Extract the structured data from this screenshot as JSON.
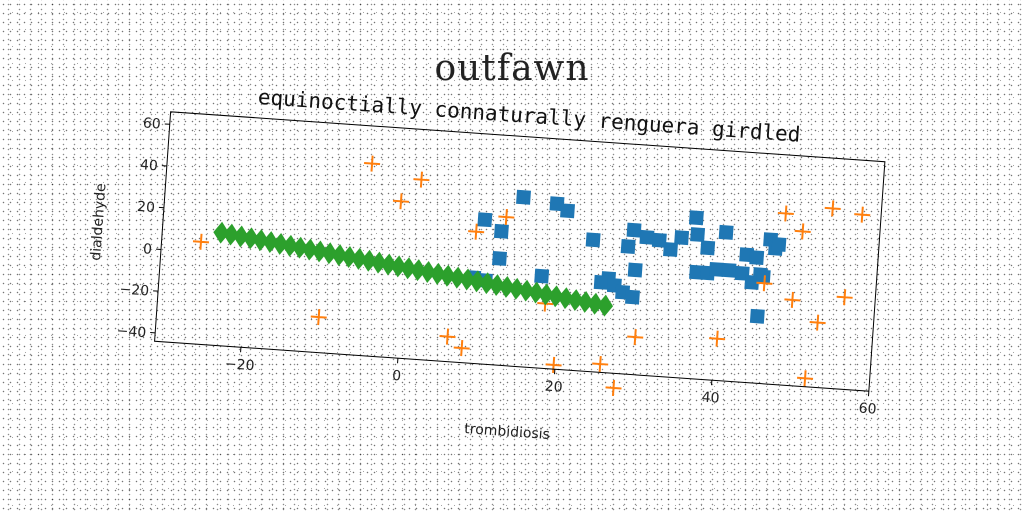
{
  "figure_title": "outfawn",
  "chart_data": {
    "type": "scatter",
    "title": "equinoctially connaturally renguera girdled",
    "xlabel": "trombidiosis",
    "ylabel": "dialdehyde",
    "xlim": [
      -31,
      60
    ],
    "ylim": [
      -44,
      66
    ],
    "xticks": [
      -20,
      0,
      20,
      40,
      60
    ],
    "yticks": [
      -40,
      -20,
      0,
      20,
      40,
      60
    ],
    "grid": false,
    "series": [
      {
        "marker": "square",
        "color": "#1f77b4",
        "points": [
          [
            8.9,
            -3
          ],
          [
            10.4,
            -4
          ],
          [
            12,
            7
          ],
          [
            9.8,
            25
          ],
          [
            12,
            20
          ],
          [
            14.5,
            37
          ],
          [
            18.8,
            35
          ],
          [
            20.2,
            32
          ],
          [
            17.5,
            0
          ],
          [
            23.7,
            19
          ],
          [
            26,
            1
          ],
          [
            25.1,
            -1
          ],
          [
            26.8,
            -2
          ],
          [
            27.9,
            -5
          ],
          [
            29.2,
            -7
          ],
          [
            28.8,
            25
          ],
          [
            28.2,
            17
          ],
          [
            30.5,
            22
          ],
          [
            29.3,
            6
          ],
          [
            32.1,
            21
          ],
          [
            33.6,
            17
          ],
          [
            34.9,
            23
          ],
          [
            36.6,
            33
          ],
          [
            36.9,
            25
          ],
          [
            37.1,
            7
          ],
          [
            38.3,
            19
          ],
          [
            38.5,
            7
          ],
          [
            39.6,
            9
          ],
          [
            40.5,
            27
          ],
          [
            41.2,
            9
          ],
          [
            42.9,
            8
          ],
          [
            43.3,
            17
          ],
          [
            44.2,
            4
          ],
          [
            44.6,
            16
          ],
          [
            45.2,
            8
          ],
          [
            45.6,
            7
          ],
          [
            46.2,
            25
          ],
          [
            46.9,
            21
          ],
          [
            47.3,
            23
          ],
          [
            45.2,
            -12
          ]
        ]
      },
      {
        "marker": "plus",
        "color": "#ff7f0e",
        "points": [
          [
            -26,
            5
          ],
          [
            -5,
            48
          ],
          [
            -1,
            31
          ],
          [
            1.4,
            42
          ],
          [
            -10.4,
            -27
          ],
          [
            6.1,
            -32
          ],
          [
            8,
            -37
          ],
          [
            8.8,
            19
          ],
          [
            12.5,
            27
          ],
          [
            18.2,
            -13
          ],
          [
            19.8,
            -42
          ],
          [
            25.7,
            -40
          ],
          [
            27.6,
            -51
          ],
          [
            29.9,
            -26
          ],
          [
            40.3,
            -24
          ],
          [
            45.8,
            4
          ],
          [
            47.9,
            38
          ],
          [
            49.5,
            -3
          ],
          [
            50.2,
            30
          ],
          [
            51.8,
            -40
          ],
          [
            52.9,
            -13
          ],
          [
            53.8,
            42
          ],
          [
            56.1,
            0
          ],
          [
            57.6,
            40
          ]
        ]
      },
      {
        "marker": "diamond",
        "color": "#2ca02c",
        "from": [
          -23.5,
          10
        ],
        "to": [
          25.8,
          -12
        ],
        "count": 40
      }
    ]
  }
}
